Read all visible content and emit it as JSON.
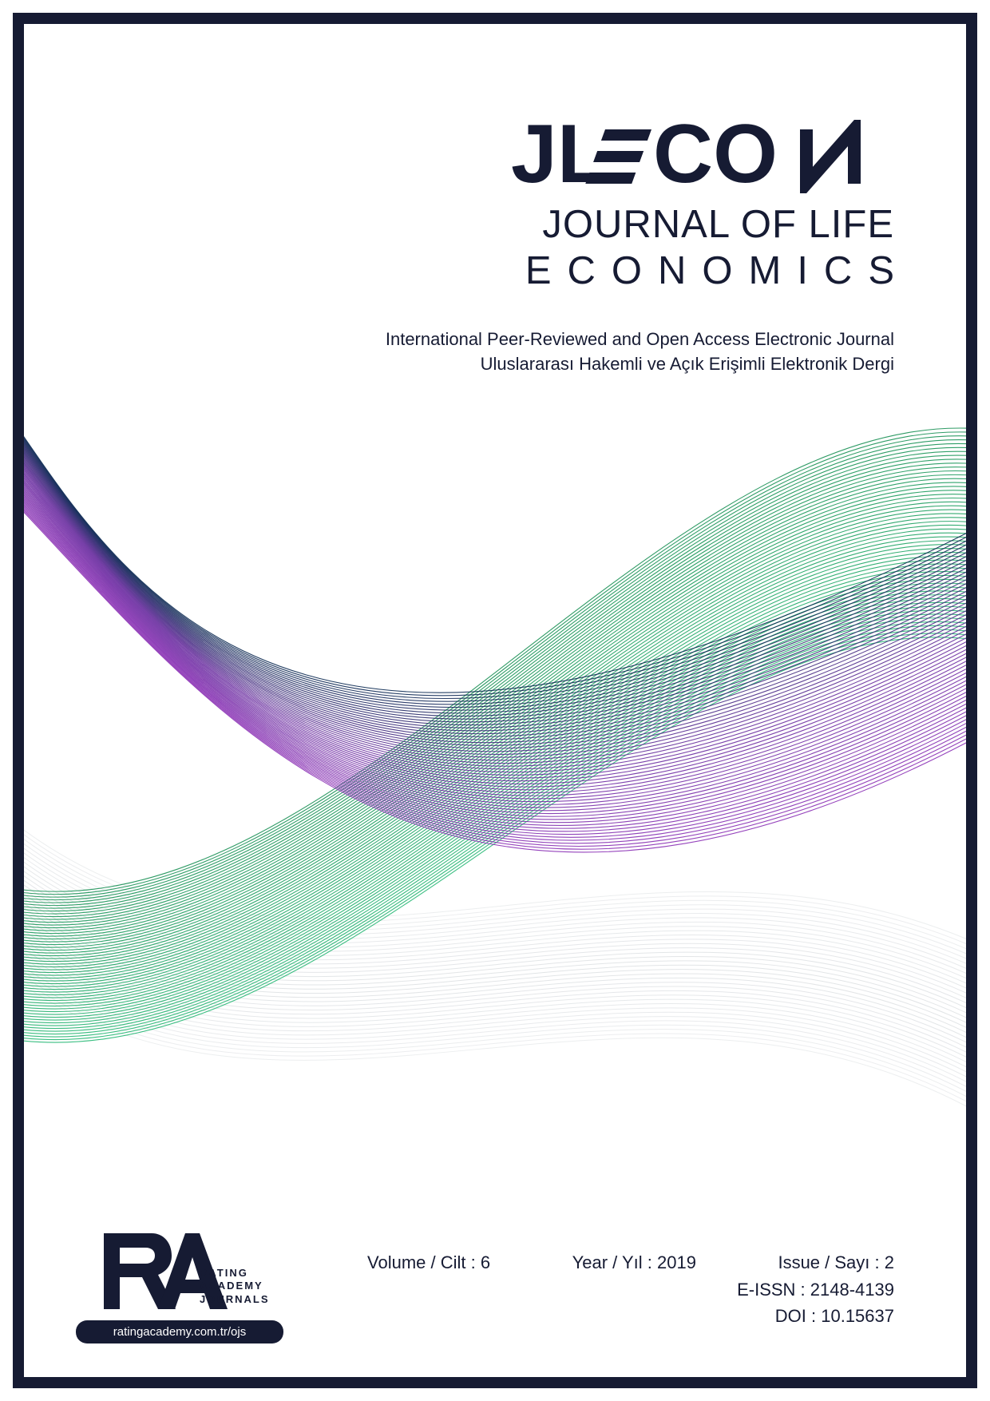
{
  "header": {
    "logo_main": "JLECON",
    "logo_sub1": "JOURNAL OF LIFE",
    "logo_sub2": "ECONOMICS"
  },
  "subtitle": {
    "line1": "International Peer-Reviewed and Open Access Electronic Journal",
    "line2": "Uluslararası Hakemli ve Açık Erişimli Elektronik Dergi"
  },
  "waves": {
    "band1": {
      "count": 55,
      "color_start": "#0c2a52",
      "color_mid": "#6a2fa0",
      "color_end": "#8a2fb5",
      "stroke_width": 1.1,
      "opacity": 0.9
    },
    "band2": {
      "count": 55,
      "color_start": "#0a8a4a",
      "color_end": "#18b36b",
      "stroke_width": 1.1,
      "opacity": 0.85
    },
    "band3": {
      "count": 35,
      "color": "#d0d4d8",
      "stroke_width": 1.0,
      "opacity": 0.7
    }
  },
  "publisher": {
    "logo_letters": "RA",
    "line1": "RATING",
    "line2": "ACADEMY",
    "line3": "JOURNALS",
    "url": "ratingacademy.com.tr/ojs",
    "logo_color": "#161b33"
  },
  "issue": {
    "volume_label": "Volume / Cilt : ",
    "volume_value": "6",
    "year_label": "Year / Yıl : ",
    "year_value": "2019",
    "issue_label": "Issue / Sayı : ",
    "issue_value": "2"
  },
  "meta": {
    "eissn_label": "E-ISSN : ",
    "eissn_value": "2148-4139",
    "doi_label": "DOI : ",
    "doi_value": "10.15637"
  },
  "colors": {
    "border": "#161b33",
    "text": "#161b33",
    "background": "#ffffff"
  }
}
